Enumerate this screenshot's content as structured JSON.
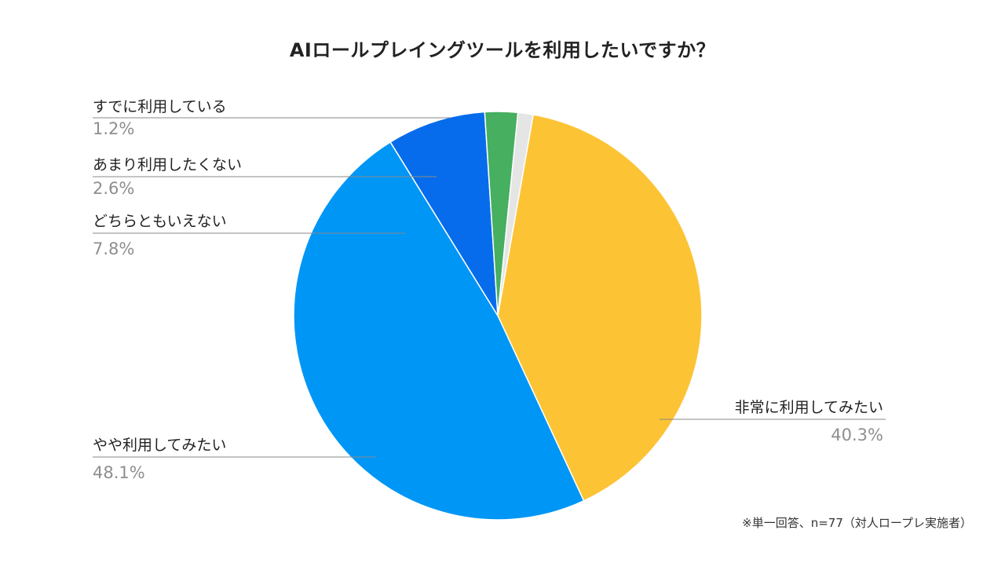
{
  "chart_data": {
    "type": "pie",
    "title": "AIロールプレイングツールを利用したいですか？",
    "start_angle_deg": 10,
    "direction": "clockwise",
    "slices": [
      {
        "label": "非常に利用してみたい",
        "value": 40.3,
        "value_label": "40.3%",
        "color": "#FCC334"
      },
      {
        "label": "やや利用してみたい",
        "value": 48.1,
        "value_label": "48.1%",
        "color": "#0096F5"
      },
      {
        "label": "どちらともいえない",
        "value": 7.8,
        "value_label": "7.8%",
        "color": "#066CEB"
      },
      {
        "label": "あまり利用したくない",
        "value": 2.6,
        "value_label": "2.6%",
        "color": "#46AF60"
      },
      {
        "label": "すでに利用している",
        "value": 1.2,
        "value_label": "1.2%",
        "color": "#E5E5E5"
      }
    ],
    "legend": "callouts"
  },
  "note": "※単一回答、n=77（対人ロープレ実施者）"
}
